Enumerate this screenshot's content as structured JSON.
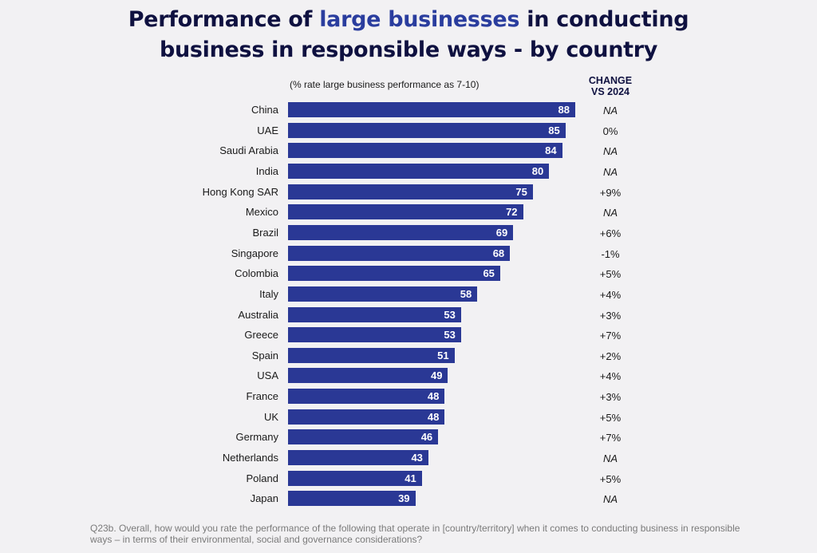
{
  "chart_data": {
    "type": "bar",
    "orientation": "horizontal",
    "title_parts": [
      "Performance of ",
      "large businesses",
      " in conducting",
      "business in responsible ways - by country"
    ],
    "subtitle": "(% rate large business performance as 7-10)",
    "change_header": [
      "CHANGE",
      "VS 2024"
    ],
    "categories": [
      "China",
      "UAE",
      "Saudi Arabia",
      "India",
      "Hong Kong SAR",
      "Mexico",
      "Brazil",
      "Singapore",
      "Colombia",
      "Italy",
      "Australia",
      "Greece",
      "Spain",
      "USA",
      "France",
      "UK",
      "Germany",
      "Netherlands",
      "Poland",
      "Japan"
    ],
    "values": [
      88,
      85,
      84,
      80,
      75,
      72,
      69,
      68,
      65,
      58,
      53,
      53,
      51,
      49,
      48,
      48,
      46,
      43,
      41,
      39
    ],
    "change_vs_2024": [
      "NA",
      "0%",
      "NA",
      "NA",
      "+9%",
      "NA",
      "+6%",
      "-1%",
      "+5%",
      "+4%",
      "+3%",
      "+7%",
      "+2%",
      "+4%",
      "+3%",
      "+5%",
      "+7%",
      "NA",
      "+5%",
      "NA"
    ],
    "xlim": [
      0,
      100
    ],
    "bar_color": "#2a3895",
    "highlight_color": "#2a3d9e",
    "footnote": "Q23b. Overall, how would you rate the performance of the following that operate in [country/territory] when it comes to conducting business in responsible ways – in terms of their environmental, social and governance considerations?"
  }
}
